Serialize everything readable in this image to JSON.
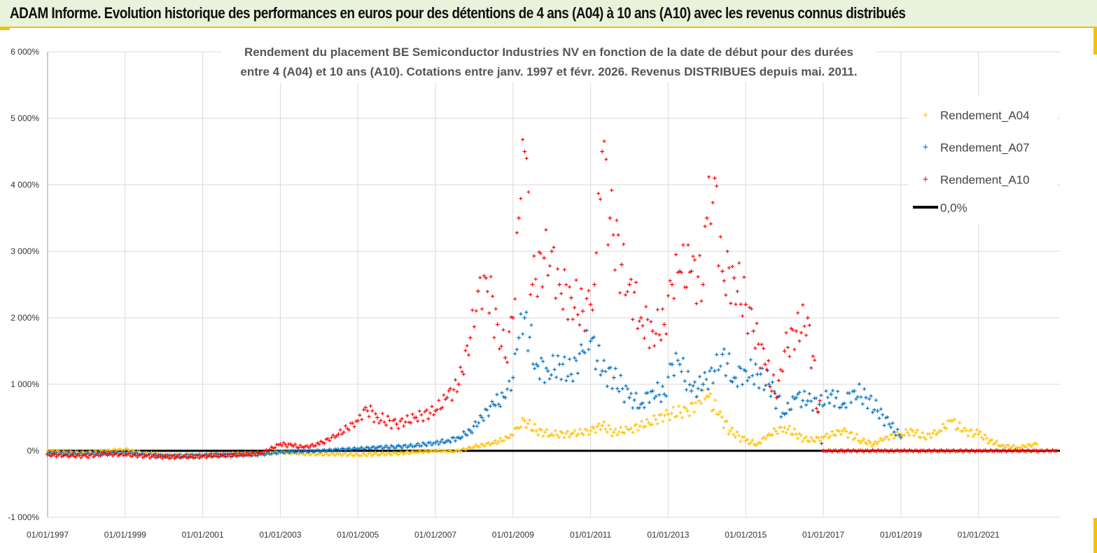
{
  "header": {
    "title": "ADAM Informe. Evolution historique des performances en euros pour des détentions de 4 ans (A04) à 10 ans (A10) avec les revenus connus distribués"
  },
  "chart_data": {
    "type": "scatter",
    "title_lines": [
      "Rendement du placement BE Semiconductor Industries NV en fonction de la date de début pour des durées",
      "entre 4 (A04) et 10 ans (A10). Cotations entre janv. 1997 et févr. 2026. Revenus DISTRIBUES depuis mai. 2011."
    ],
    "xlabel": "",
    "ylabel": "",
    "xlim": [
      1997.0,
      2023.1
    ],
    "ylim": [
      -1000,
      6000
    ],
    "y_ticks": [
      {
        "value": 6000,
        "label": "6 000%"
      },
      {
        "value": 5000,
        "label": "5 000%"
      },
      {
        "value": 4000,
        "label": "4 000%"
      },
      {
        "value": 3000,
        "label": "3 000%"
      },
      {
        "value": 2000,
        "label": "2 000%"
      },
      {
        "value": 1000,
        "label": "1 000%"
      },
      {
        "value": 0,
        "label": "0%"
      },
      {
        "value": -1000,
        "label": "-1 000%"
      }
    ],
    "x_ticks": [
      {
        "value": 1997,
        "label": "01/01/1997"
      },
      {
        "value": 1999,
        "label": "01/01/1999"
      },
      {
        "value": 2001,
        "label": "01/01/2001"
      },
      {
        "value": 2003,
        "label": "01/01/2003"
      },
      {
        "value": 2005,
        "label": "01/01/2005"
      },
      {
        "value": 2007,
        "label": "01/01/2007"
      },
      {
        "value": 2009,
        "label": "01/01/2009"
      },
      {
        "value": 2011,
        "label": "01/01/2011"
      },
      {
        "value": 2013,
        "label": "01/01/2013"
      },
      {
        "value": 2015,
        "label": "01/01/2015"
      },
      {
        "value": 2017,
        "label": "01/01/2017"
      },
      {
        "value": 2019,
        "label": "01/01/2019"
      },
      {
        "value": 2021,
        "label": "01/01/2021"
      }
    ],
    "grid": true,
    "legend_position": "top-right",
    "reference_line": {
      "name": "0,0%",
      "value": 0,
      "color": "#000000"
    },
    "series": [
      {
        "name": "Rendement_A04",
        "color": "#ffc000",
        "x": [
          1997.0,
          1997.5,
          1998.0,
          1998.5,
          1999.0,
          1999.5,
          2000.0,
          2000.5,
          2001.0,
          2001.5,
          2002.0,
          2002.5,
          2003.0,
          2003.5,
          2004.0,
          2004.5,
          2005.0,
          2005.5,
          2006.0,
          2006.5,
          2007.0,
          2007.5,
          2008.0,
          2008.5,
          2008.9,
          2009.1,
          2009.3,
          2009.6,
          2010.0,
          2010.5,
          2011.0,
          2011.3,
          2011.6,
          2012.0,
          2012.5,
          2013.0,
          2013.5,
          2013.8,
          2014.0,
          2014.3,
          2014.6,
          2015.0,
          2015.3,
          2015.6,
          2016.0,
          2016.3,
          2016.6,
          2017.0,
          2017.5,
          2018.0,
          2018.3,
          2018.6,
          2019.0,
          2019.3,
          2019.6,
          2020.0,
          2020.3,
          2020.6,
          2021.0,
          2021.3,
          2021.6,
          2022.0,
          2022.5
        ],
        "values": [
          0,
          -20,
          -30,
          0,
          20,
          -40,
          -60,
          -80,
          -70,
          -60,
          -50,
          -40,
          -20,
          -40,
          -50,
          -50,
          -60,
          -50,
          -40,
          -20,
          0,
          -10,
          60,
          120,
          200,
          350,
          450,
          300,
          250,
          250,
          300,
          380,
          280,
          320,
          420,
          550,
          600,
          750,
          820,
          550,
          300,
          150,
          100,
          250,
          350,
          250,
          150,
          200,
          300,
          150,
          100,
          200,
          250,
          300,
          200,
          300,
          450,
          300,
          250,
          150,
          80,
          50,
          100
        ]
      },
      {
        "name": "Rendement_A07",
        "color": "#0070c0",
        "x": [
          1997.0,
          1997.5,
          1998.0,
          1998.5,
          1999.0,
          1999.5,
          2000.0,
          2000.5,
          2001.0,
          2001.5,
          2002.0,
          2002.5,
          2003.0,
          2003.5,
          2004.0,
          2004.5,
          2005.0,
          2005.5,
          2006.0,
          2006.5,
          2007.0,
          2007.3,
          2007.6,
          2007.9,
          2008.2,
          2008.5,
          2008.8,
          2009.0,
          2009.15,
          2009.3,
          2009.6,
          2009.9,
          2010.2,
          2010.5,
          2010.8,
          2011.0,
          2011.3,
          2011.6,
          2012.0,
          2012.3,
          2012.6,
          2012.9,
          2013.1,
          2013.3,
          2013.6,
          2013.9,
          2014.2,
          2014.4,
          2014.7,
          2015.0,
          2015.3,
          2015.6,
          2016.0,
          2016.3,
          2016.6,
          2016.9,
          2017.2,
          2017.5,
          2017.8,
          2018.1,
          2018.4,
          2018.7,
          2019.0
        ],
        "values": [
          -40,
          -50,
          -50,
          -40,
          -30,
          -60,
          -80,
          -80,
          -70,
          -60,
          -60,
          -50,
          -20,
          -10,
          0,
          20,
          30,
          50,
          60,
          80,
          120,
          150,
          200,
          300,
          500,
          700,
          800,
          1100,
          1700,
          2000,
          1300,
          1200,
          1300,
          1150,
          1500,
          1650,
          1200,
          1100,
          800,
          700,
          900,
          850,
          1300,
          1300,
          900,
          1000,
          1200,
          1450,
          1100,
          1200,
          1150,
          1000,
          550,
          800,
          750,
          700,
          850,
          700,
          900,
          800,
          600,
          400,
          200
        ]
      },
      {
        "name": "Rendement_A10",
        "color": "#ff0000",
        "x": [
          1997.0,
          1997.5,
          1998.0,
          1998.5,
          1999.0,
          1999.5,
          2000.0,
          2000.5,
          2001.0,
          2001.5,
          2002.0,
          2002.5,
          2003.0,
          2003.3,
          2003.6,
          2004.0,
          2004.5,
          2005.0,
          2005.2,
          2005.5,
          2006.0,
          2006.5,
          2007.0,
          2007.3,
          2007.6,
          2007.9,
          2008.1,
          2008.3,
          2008.6,
          2008.8,
          2009.0,
          2009.15,
          2009.3,
          2009.5,
          2009.8,
          2010.0,
          2010.2,
          2010.5,
          2010.8,
          2011.0,
          2011.1,
          2011.3,
          2011.5,
          2011.8,
          2012.0,
          2012.3,
          2012.6,
          2012.9,
          2013.1,
          2013.3,
          2013.6,
          2013.9,
          2014.0,
          2014.2,
          2014.4,
          2014.7,
          2015.0,
          2015.2,
          2015.5,
          2015.8,
          2016.0,
          2016.3,
          2016.6,
          2017.0,
          2017.5,
          2018.0,
          2018.5,
          2019.0,
          2019.5,
          2020.0,
          2020.5,
          2021.0,
          2021.5,
          2022.0,
          2022.5,
          2023.0
        ],
        "values": [
          -60,
          -70,
          -80,
          -50,
          -60,
          -80,
          -90,
          -90,
          -80,
          -70,
          -60,
          -40,
          100,
          80,
          50,
          100,
          250,
          450,
          650,
          500,
          400,
          500,
          600,
          800,
          1000,
          1700,
          2400,
          2600,
          1900,
          1400,
          2000,
          3500,
          4500,
          2500,
          2900,
          3000,
          2500,
          2300,
          2100,
          2200,
          2500,
          4500,
          3500,
          2800,
          2500,
          2000,
          1800,
          1900,
          2500,
          2700,
          2700,
          2500,
          3500,
          4100,
          2700,
          2600,
          2200,
          1800,
          1300,
          800,
          1500,
          1800,
          2000,
          0,
          0,
          0,
          0,
          0,
          0,
          0,
          0,
          0,
          0,
          0,
          0,
          0
        ]
      }
    ]
  }
}
